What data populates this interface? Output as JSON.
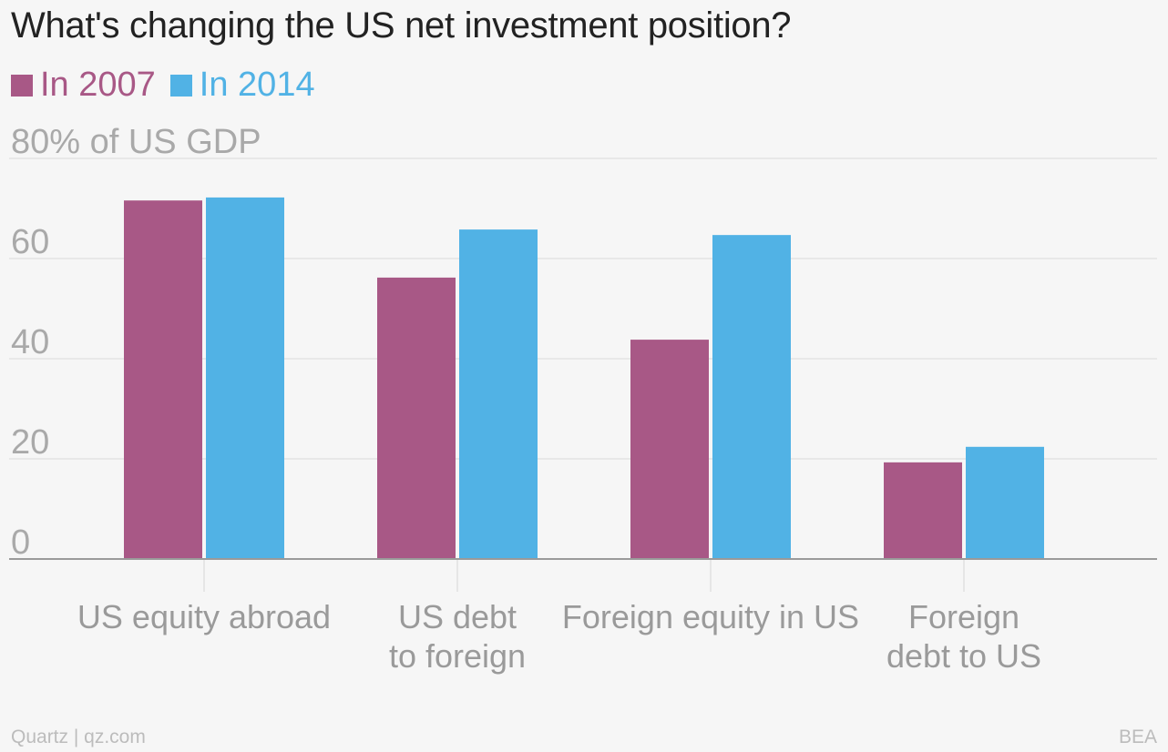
{
  "title": "What's changing the US net investment position?",
  "source_left": "Quartz | qz.com",
  "source_right": "BEA",
  "chart_data": {
    "type": "bar",
    "title": "What's changing the US net investment position?",
    "ylabel": "",
    "xlabel": "",
    "ylim": [
      0,
      80
    ],
    "yticks": [
      {
        "value": 0,
        "label": "0"
      },
      {
        "value": 20,
        "label": "20"
      },
      {
        "value": 40,
        "label": "40"
      },
      {
        "value": 60,
        "label": "60"
      },
      {
        "value": 80,
        "label": "80% of US GDP"
      }
    ],
    "grid": true,
    "legend_position": "top-left",
    "categories": [
      [
        "US equity abroad"
      ],
      [
        "US debt",
        "to foreign"
      ],
      [
        "Foreign equity in US"
      ],
      [
        "Foreign",
        "debt to US"
      ]
    ],
    "series": [
      {
        "name": "In 2007",
        "color": "#a85886",
        "values": [
          71.6,
          56.2,
          43.8,
          19.3
        ]
      },
      {
        "name": "In 2014",
        "color": "#51b2e5",
        "values": [
          72.2,
          65.8,
          64.7,
          22.4
        ]
      }
    ]
  }
}
